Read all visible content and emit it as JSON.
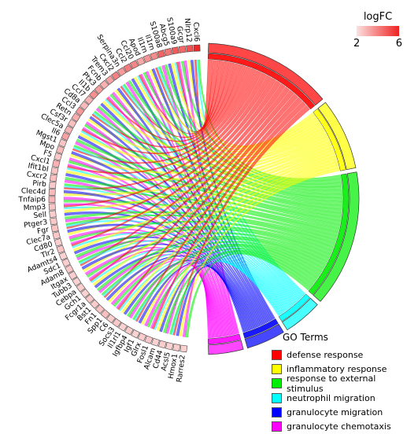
{
  "chart_data": {
    "type": "chord",
    "genes": [
      "Cxcl6",
      "Nlrp12",
      "Gcgr",
      "S100a9",
      "Abcg5",
      "S100a8",
      "Il1rn",
      "Il1rn",
      "Apod",
      "Ccl20",
      "Ccl2",
      "Serpina3n",
      "Cxcl2",
      "Trem3",
      "Fcnb",
      "Ptx3",
      "Il1b",
      "Ccl7",
      "Cd8a",
      "Ccl3",
      "Retn",
      "Csf3r",
      "Clec5a",
      "Il6",
      "Mgst1",
      "Mpo",
      "F5",
      "Cxcl1",
      "Ifit1bl",
      "Cxcr2",
      "Pirb",
      "Clec4d",
      "Tnfaip6",
      "Mmp3",
      "Sell",
      "Ptger3",
      "Fgr",
      "Clec7a",
      "Cd80",
      "Tlr2",
      "Adamts4",
      "Sdc1",
      "Adam8",
      "Itgax",
      "Tubb3",
      "Cebpa",
      "Gch1",
      "Fcgr1a",
      "Bst1",
      "Fn1",
      "Spp1",
      "C6",
      "Socs3",
      "Il1rl1",
      "Igfbp4",
      "Igf1",
      "Glrx",
      "Fosl1",
      "Alcam",
      "Cd44",
      "Acsl5",
      "Hmox1",
      "Rarres2"
    ],
    "logfc": [
      5.9,
      5.0,
      4.5,
      4.8,
      4.2,
      4.6,
      3.8,
      3.6,
      3.2,
      3.9,
      4.1,
      3.5,
      4.0,
      3.3,
      3.0,
      3.4,
      3.7,
      2.9,
      2.8,
      3.5,
      3.1,
      2.7,
      2.9,
      3.3,
      2.6,
      2.8,
      2.5,
      3.0,
      2.6,
      2.7,
      2.5,
      2.8,
      2.9,
      2.6,
      2.4,
      2.5,
      2.6,
      2.5,
      2.4,
      2.6,
      2.3,
      2.4,
      2.5,
      2.4,
      2.3,
      2.4,
      2.3,
      2.5,
      2.4,
      2.6,
      2.7,
      2.4,
      2.5,
      2.3,
      2.4,
      2.3,
      2.4,
      2.5,
      2.3,
      2.4,
      2.3,
      2.4,
      2.3
    ],
    "terms": [
      {
        "name": "defense response",
        "color": "#ff0000",
        "size": 63
      },
      {
        "name": "inflammatory response",
        "color": "#ffff00",
        "size": 35
      },
      {
        "name": "response to external stimulus",
        "color": "#00ee00",
        "size": 67
      },
      {
        "name": "neutrophil migration",
        "color": "#00ffff",
        "size": 19
      },
      {
        "name": "granulocyte migration",
        "color": "#0000ff",
        "size": 19
      },
      {
        "name": "granulocyte chemotaxis",
        "color": "#ff00ff",
        "size": 17
      }
    ],
    "legend_title": "GO Terms",
    "colorbar": {
      "title": "logFC",
      "min": 2,
      "max": 6,
      "low_color": "#fce0e0",
      "high_color": "#ee2222"
    }
  }
}
